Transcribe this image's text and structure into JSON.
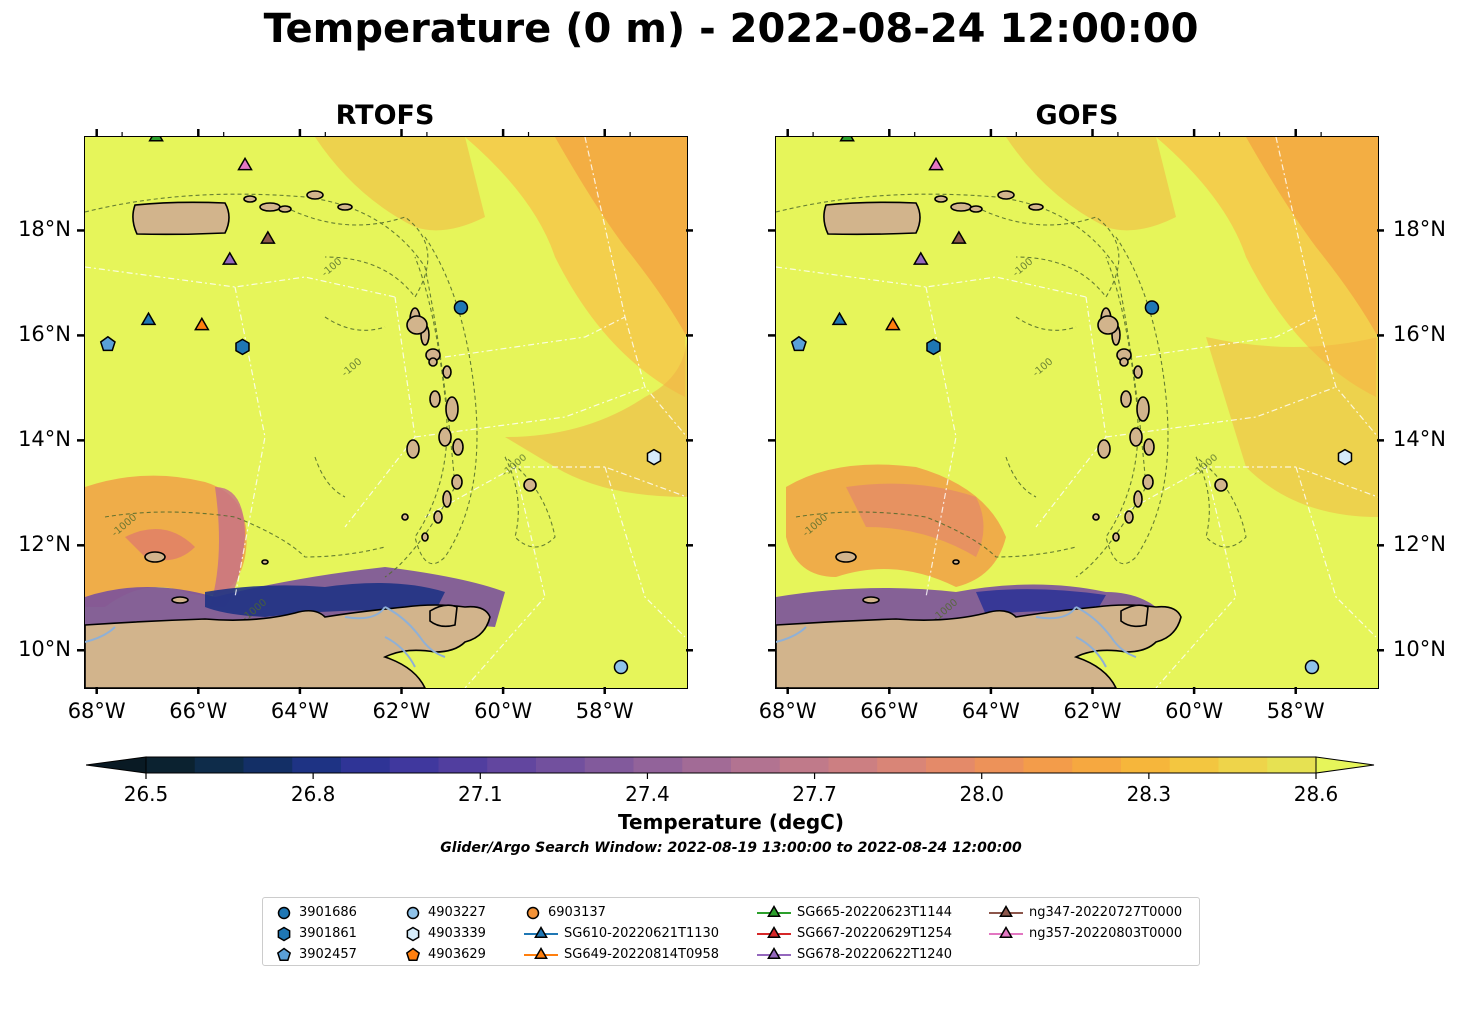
{
  "title": "Temperature (0 m) - 2022-08-24 12:00:00",
  "panels": [
    {
      "title": "RTOFS"
    },
    {
      "title": "GOFS"
    }
  ],
  "axes": {
    "x_ticks": [
      "68°W",
      "66°W",
      "64°W",
      "62°W",
      "60°W",
      "58°W"
    ],
    "y_ticks": [
      "10°N",
      "12°N",
      "14°N",
      "16°N",
      "18°N"
    ]
  },
  "colorbar": {
    "label": "Temperature (degC)",
    "ticks": [
      "26.5",
      "26.8",
      "27.1",
      "27.4",
      "27.7",
      "28.0",
      "28.3",
      "28.6"
    ],
    "colors": [
      "#0b2230",
      "#0e2c4a",
      "#132f66",
      "#1e3384",
      "#2f3496",
      "#40389e",
      "#513e9f",
      "#62469f",
      "#72509e",
      "#825a9c",
      "#92639a",
      "#a26b96",
      "#b27391",
      "#c07a8a",
      "#cc7f82",
      "#d98577",
      "#e48a69",
      "#ed9259",
      "#f39c4a",
      "#f6a840",
      "#f6b63b",
      "#f3c640",
      "#eed44a",
      "#e6e152"
    ],
    "extend": "both"
  },
  "search_window": "Glider/Argo Search Window: 2022-08-19 13:00:00 to 2022-08-24 12:00:00",
  "legend": [
    {
      "label": "3901686",
      "marker": "circle",
      "color": "#1f77b4"
    },
    {
      "label": "3901861",
      "marker": "hexagon",
      "color": "#1f77b4"
    },
    {
      "label": "3902457",
      "marker": "pentagon",
      "color": "#5aa0d8"
    },
    {
      "label": "4903227",
      "marker": "circle",
      "color": "#8fc3ea"
    },
    {
      "label": "4903339",
      "marker": "hexagon",
      "color": "#d6ecfa"
    },
    {
      "label": "4903629",
      "marker": "pentagon",
      "color": "#ff7f0e"
    },
    {
      "label": "6903137",
      "marker": "circle",
      "color": "#f39237"
    },
    {
      "label": "SG610-20220621T1130",
      "marker": "triangle-line",
      "color": "#1f77b4"
    },
    {
      "label": "SG649-20220814T0958",
      "marker": "triangle-line",
      "color": "#ff7f0e"
    },
    {
      "label": "SG665-20220623T1144",
      "marker": "triangle-line",
      "color": "#2ca02c"
    },
    {
      "label": "SG667-20220629T1254",
      "marker": "triangle-line",
      "color": "#d62728"
    },
    {
      "label": "SG678-20220622T1240",
      "marker": "triangle-line",
      "color": "#9467bd"
    },
    {
      "label": "ng347-20220727T0000",
      "marker": "triangle-line",
      "color": "#8c564b"
    },
    {
      "label": "ng357-20220803T0000",
      "marker": "triangle-line",
      "color": "#e377c2"
    }
  ],
  "chart_data": {
    "type": "heatmap",
    "title": "Temperature (0 m) - 2022-08-24 12:00:00",
    "variable": "Temperature (degC)",
    "depth_m": 0,
    "time": "2022-08-24 12:00:00",
    "panels": [
      "RTOFS",
      "GOFS"
    ],
    "xlim": [
      -68.25,
      -56.4
    ],
    "ylim": [
      9.3,
      19.8
    ],
    "clim": [
      26.5,
      28.6
    ],
    "colormap_extend": "both",
    "contour_labels": [
      "-1000",
      "-100"
    ],
    "observations": [
      {
        "id": "3901686",
        "lon": -60.85,
        "lat": 16.55
      },
      {
        "id": "3901861",
        "lon": -65.15,
        "lat": 15.8
      },
      {
        "id": "3902457",
        "lon": -67.8,
        "lat": 15.85
      },
      {
        "id": "4903227",
        "lon": -57.7,
        "lat": 9.7
      },
      {
        "id": "4903339",
        "lon": -57.05,
        "lat": 13.7
      },
      {
        "id": "4903629",
        "lon": null,
        "lat": null
      },
      {
        "id": "6903137",
        "lon": null,
        "lat": null
      },
      {
        "id": "SG610-20220621T1130",
        "lon": -67.0,
        "lat": 16.3
      },
      {
        "id": "SG649-20220814T0958",
        "lon": -65.95,
        "lat": 16.2
      },
      {
        "id": "SG665-20220623T1144",
        "lon": -66.85,
        "lat": 19.8
      },
      {
        "id": "SG667-20220629T1254",
        "lon": null,
        "lat": null
      },
      {
        "id": "SG678-20220622T1240",
        "lon": -65.4,
        "lat": 17.45
      },
      {
        "id": "ng347-20220727T0000",
        "lon": -64.65,
        "lat": 17.85
      },
      {
        "id": "ng357-20220803T0000",
        "lon": -65.1,
        "lat": 19.25
      }
    ]
  }
}
